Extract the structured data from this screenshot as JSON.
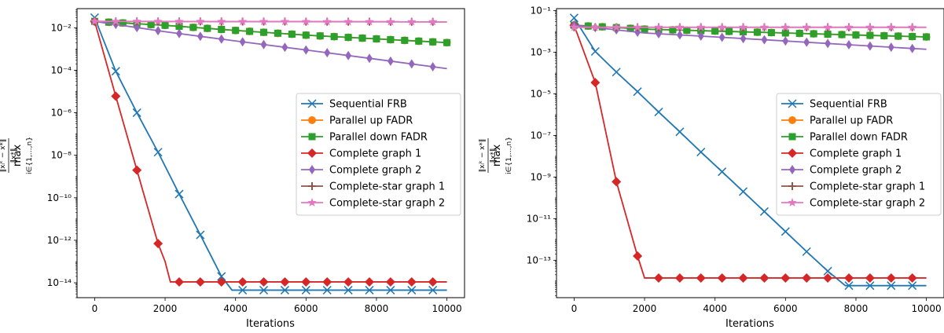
{
  "figure": {
    "ylabel_main": "max",
    "ylabel_sub": "i∈{1,…,n}",
    "ylabel_num": "‖xᵢᵏ − x*‖",
    "ylabel_den": "‖x*‖"
  },
  "colors": {
    "Sequential FRB": "#1f77b4",
    "Parallel up FADR": "#ff7f0e",
    "Parallel down FADR": "#2ca02c",
    "Complete graph 1": "#d62728",
    "Complete graph 2": "#9467bd",
    "Complete-star graph 1": "#8c564b",
    "Complete-star graph 2": "#e377c2"
  },
  "markers": {
    "Sequential FRB": "x",
    "Parallel up FADR": "o",
    "Parallel down FADR": "s",
    "Complete graph 1": "D",
    "Complete graph 2": "d",
    "Complete-star graph 1": "+",
    "Complete-star graph 2": "*"
  },
  "chart_data": [
    {
      "type": "line",
      "xlabel": "Iterations",
      "yscale": "log",
      "xlim": [
        -500,
        10500
      ],
      "ylim_exp": [
        -14.7,
        -1.1
      ],
      "xticks": [
        0,
        2000,
        4000,
        6000,
        8000,
        10000
      ],
      "yticks_exp": [
        -14,
        -12,
        -10,
        -8,
        -6,
        -4,
        -2
      ],
      "legend_loc": "center right",
      "series": [
        {
          "name": "Sequential FRB",
          "marker_every": 600,
          "points": [
            [
              0,
              0.03
            ],
            [
              600,
              9e-05
            ],
            [
              1200,
              1e-06
            ],
            [
              1800,
              1.4e-08
            ],
            [
              2400,
              1.5e-10
            ],
            [
              3000,
              1.8e-12
            ],
            [
              3600,
              2e-14
            ],
            [
              3900,
              4.5e-15
            ],
            [
              10000,
              4.5e-15
            ]
          ]
        },
        {
          "name": "Parallel up FADR",
          "marker_every": 400,
          "points": [
            [
              0,
              0.02
            ],
            [
              2000,
              0.013
            ],
            [
              4000,
              0.0075
            ],
            [
              6000,
              0.0045
            ],
            [
              8000,
              0.003
            ],
            [
              10000,
              0.002
            ]
          ]
        },
        {
          "name": "Parallel down FADR",
          "marker_every": 400,
          "points": [
            [
              0,
              0.02
            ],
            [
              2000,
              0.013
            ],
            [
              4000,
              0.0075
            ],
            [
              6000,
              0.0045
            ],
            [
              8000,
              0.003
            ],
            [
              10000,
              0.002
            ]
          ]
        },
        {
          "name": "Complete graph 1",
          "marker_every": 600,
          "points": [
            [
              0,
              0.02
            ],
            [
              600,
              6e-06
            ],
            [
              1200,
              2e-09
            ],
            [
              1800,
              7e-13
            ],
            [
              2000,
              1e-13
            ],
            [
              2150,
              1.1e-14
            ],
            [
              10000,
              1.1e-14
            ]
          ]
        },
        {
          "name": "Complete graph 2",
          "marker_every": 600,
          "points": [
            [
              0,
              0.02
            ],
            [
              2000,
              0.0065
            ],
            [
              4000,
              0.0024
            ],
            [
              6000,
              0.0009
            ],
            [
              8000,
              0.00033
            ],
            [
              10000,
              0.00012
            ]
          ]
        },
        {
          "name": "Complete-star graph 1",
          "marker_every": 600,
          "points": [
            [
              0,
              0.02
            ],
            [
              10000,
              0.019
            ]
          ]
        },
        {
          "name": "Complete-star graph 2",
          "marker_every": 600,
          "points": [
            [
              0,
              0.02
            ],
            [
              10000,
              0.019
            ]
          ]
        }
      ]
    },
    {
      "type": "line",
      "xlabel": "Iterations",
      "yscale": "log",
      "ylim_exp": [
        -14.8,
        -0.9
      ],
      "xlim": [
        -500,
        10500
      ],
      "xticks": [
        0,
        2000,
        4000,
        6000,
        8000,
        10000
      ],
      "yticks_exp": [
        -13,
        -11,
        -9,
        -7,
        -5,
        -3,
        -1
      ],
      "legend_loc": "center right",
      "series": [
        {
          "name": "Sequential FRB",
          "marker_every": 600,
          "points": [
            [
              0,
              0.045
            ],
            [
              600,
              0.0011
            ],
            [
              1200,
              0.000112
            ],
            [
              1800,
              1.28e-05
            ],
            [
              2400,
              1.35e-06
            ],
            [
              3000,
              1.5e-07
            ],
            [
              3600,
              1.6e-08
            ],
            [
              4200,
              1.8e-09
            ],
            [
              4800,
              2e-10
            ],
            [
              5400,
              2.2e-11
            ],
            [
              6000,
              2.4e-12
            ],
            [
              6600,
              2.6e-13
            ],
            [
              7200,
              3e-14
            ],
            [
              7700,
              6e-15
            ],
            [
              10000,
              6e-15
            ]
          ]
        },
        {
          "name": "Parallel up FADR",
          "marker_every": 400,
          "points": [
            [
              0,
              0.02
            ],
            [
              2000,
              0.013
            ],
            [
              4000,
              0.0105
            ],
            [
              6000,
              0.0085
            ],
            [
              8000,
              0.0068
            ],
            [
              10000,
              0.0055
            ]
          ]
        },
        {
          "name": "Parallel down FADR",
          "marker_every": 400,
          "points": [
            [
              0,
              0.02
            ],
            [
              2000,
              0.013
            ],
            [
              4000,
              0.0105
            ],
            [
              6000,
              0.0085
            ],
            [
              8000,
              0.0068
            ],
            [
              10000,
              0.0055
            ]
          ]
        },
        {
          "name": "Complete graph 1",
          "marker_every": 600,
          "points": [
            [
              0,
              0.02
            ],
            [
              600,
              3.5e-05
            ],
            [
              1200,
              6e-10
            ],
            [
              1800,
              1.6e-13
            ],
            [
              2000,
              1.4e-14
            ],
            [
              10000,
              1.4e-14
            ]
          ]
        },
        {
          "name": "Complete graph 2",
          "marker_every": 600,
          "points": [
            [
              0,
              0.02
            ],
            [
              2000,
              0.0085
            ],
            [
              4000,
              0.0055
            ],
            [
              6000,
              0.0035
            ],
            [
              8000,
              0.0022
            ],
            [
              10000,
              0.0014
            ]
          ]
        },
        {
          "name": "Complete-star graph 1",
          "marker_every": 600,
          "points": [
            [
              0,
              0.016
            ],
            [
              10000,
              0.016
            ]
          ]
        },
        {
          "name": "Complete-star graph 2",
          "marker_every": 600,
          "points": [
            [
              0,
              0.016
            ],
            [
              10000,
              0.016
            ]
          ]
        }
      ]
    }
  ]
}
